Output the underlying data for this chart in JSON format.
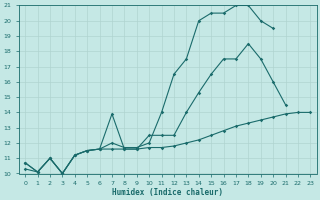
{
  "xlabel": "Humidex (Indice chaleur)",
  "xlim": [
    -0.5,
    23.5
  ],
  "ylim": [
    10,
    21
  ],
  "xticks": [
    0,
    1,
    2,
    3,
    4,
    5,
    6,
    7,
    8,
    9,
    10,
    11,
    12,
    13,
    14,
    15,
    16,
    17,
    18,
    19,
    20,
    21,
    22,
    23
  ],
  "yticks": [
    10,
    11,
    12,
    13,
    14,
    15,
    16,
    17,
    18,
    19,
    20,
    21
  ],
  "background_color": "#c5e8e5",
  "line_color": "#1a6b6b",
  "grid_color": "#b0d4d0",
  "line1_x": [
    0,
    1,
    2,
    3,
    4,
    5,
    6,
    7,
    8,
    9,
    10,
    11,
    12,
    13,
    14,
    15,
    16,
    17,
    18,
    19,
    20
  ],
  "line1_y": [
    10.7,
    10.1,
    11.0,
    10.0,
    11.2,
    11.5,
    11.6,
    12.0,
    11.7,
    11.7,
    12.0,
    14.0,
    16.5,
    17.5,
    20.0,
    20.5,
    20.5,
    21.0,
    21.0,
    20.0,
    19.5
  ],
  "line2_x": [
    0,
    1,
    2,
    3,
    4,
    5,
    6,
    7,
    8,
    9,
    10,
    11,
    12,
    13,
    14,
    15,
    16,
    17,
    18,
    19,
    20,
    21
  ],
  "line2_y": [
    10.7,
    10.1,
    11.0,
    10.0,
    11.2,
    11.5,
    11.6,
    13.9,
    11.6,
    11.6,
    12.5,
    12.5,
    12.5,
    14.0,
    15.3,
    16.5,
    17.5,
    17.5,
    18.5,
    17.5,
    16.0,
    14.5
  ],
  "line3_x": [
    0,
    1,
    2,
    3,
    4,
    5,
    6,
    7,
    8,
    9,
    10,
    11,
    12,
    13,
    14,
    15,
    16,
    17,
    18,
    19,
    20,
    21,
    22,
    23
  ],
  "line3_y": [
    10.3,
    10.1,
    11.0,
    10.0,
    11.2,
    11.5,
    11.6,
    11.6,
    11.6,
    11.6,
    11.7,
    11.7,
    11.8,
    12.0,
    12.2,
    12.5,
    12.8,
    13.1,
    13.3,
    13.5,
    13.7,
    13.9,
    14.0,
    14.0
  ]
}
